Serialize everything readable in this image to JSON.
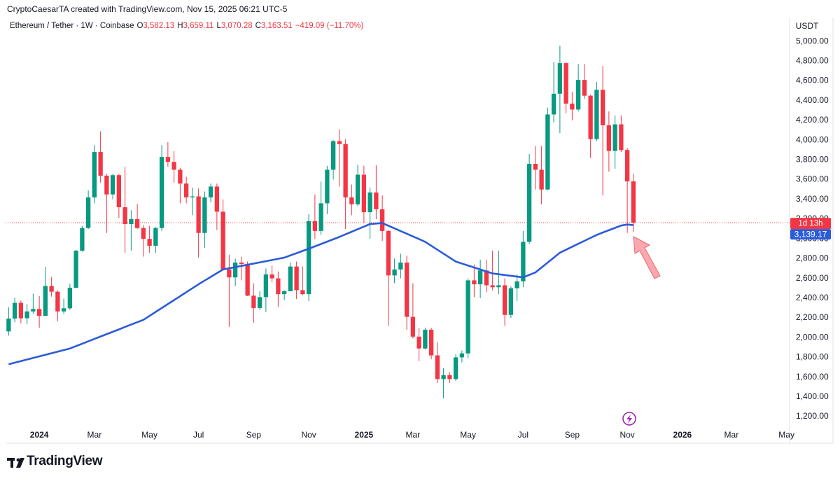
{
  "header": {
    "attribution": "CryptoCaesarTA created with TradingView.com, Nov 15, 2025 06:21 UTC-5",
    "symbol": "Ethereum / Tether · 1W · Coinbase",
    "ohlc": [
      {
        "key": "O",
        "value": "3,582.13"
      },
      {
        "key": "H",
        "value": "3,659.11"
      },
      {
        "key": "L",
        "value": "3,070.28"
      },
      {
        "key": "C",
        "value": "3,163.51"
      }
    ],
    "change": "−419.09 (−11.70%)"
  },
  "chart_data": {
    "type": "candlestick",
    "categories": [
      null,
      null,
      null,
      null,
      null,
      "2024",
      null,
      null,
      null,
      null,
      null,
      null,
      null,
      null,
      "Mar",
      null,
      null,
      null,
      null,
      null,
      null,
      null,
      null,
      "May",
      null,
      null,
      null,
      null,
      null,
      null,
      null,
      "Jul",
      null,
      null,
      null,
      null,
      null,
      null,
      null,
      null,
      "Sep",
      null,
      null,
      null,
      null,
      null,
      null,
      null,
      null,
      "Nov",
      null,
      null,
      null,
      null,
      null,
      null,
      null,
      null,
      "2025",
      null,
      null,
      null,
      null,
      null,
      null,
      null,
      "Mar",
      null,
      null,
      null,
      null,
      null,
      null,
      null,
      null,
      "May",
      null,
      null,
      null,
      null,
      null,
      null,
      null,
      null,
      "Jul",
      null,
      null,
      null,
      null,
      null,
      null,
      null,
      "Sep",
      null,
      null,
      null,
      null,
      null,
      null,
      null,
      null,
      "Nov",
      null,
      null,
      null,
      null,
      null,
      null,
      null,
      null,
      "2026",
      null,
      null,
      null,
      null,
      null,
      null,
      null,
      "Mar",
      null,
      null,
      null,
      null,
      null,
      null,
      null,
      null,
      "May"
    ],
    "open": [
      2063,
      2193,
      2352,
      2196,
      2265,
      2290,
      2220,
      2523,
      2465,
      2265,
      2297,
      2505,
      2880,
      3110,
      3420,
      3880,
      3640,
      3450,
      3645,
      3320,
      3150,
      3200,
      3110,
      3000,
      2930,
      3110,
      3830,
      3780,
      3700,
      3560,
      3420,
      3430,
      3060,
      3420,
      3530,
      3275,
      2690,
      2610,
      2760,
      2745,
      2425,
      2300,
      2410,
      2640,
      2600,
      2440,
      2470,
      2720,
      2480,
      2440,
      3180,
      3080,
      3360,
      3700,
      3990,
      3960,
      3420,
      3350,
      3650,
      3270,
      3470,
      3300,
      3080,
      2630,
      2690,
      2760,
      2210,
      2010,
      1890,
      2080,
      1820,
      1580,
      1620,
      1580,
      1800,
      1840,
      2580,
      2540,
      2680,
      2530,
      2510,
      2530,
      2230,
      2500,
      2570,
      2970,
      3760,
      3700,
      3500,
      4260,
      4470,
      4780,
      4370,
      4310,
      4610,
      4450,
      4010,
      4510,
      4150,
      3890,
      4160,
      3900,
      3582.13,
      null,
      null,
      null,
      null,
      null,
      null,
      null,
      null,
      null,
      null,
      null,
      null,
      null,
      null,
      null,
      null,
      null,
      null,
      null,
      null,
      null,
      null,
      null,
      null,
      null
    ],
    "high": [
      2307,
      2403,
      2374,
      2339,
      2445,
      2420,
      2717,
      2615,
      2478,
      2395,
      2545,
      2890,
      3130,
      3490,
      3950,
      4090,
      3660,
      3660,
      3660,
      3730,
      3290,
      3355,
      3140,
      3130,
      3120,
      3950,
      3980,
      3890,
      3720,
      3630,
      3520,
      3510,
      3480,
      3560,
      3560,
      3400,
      2840,
      2800,
      2820,
      2770,
      2550,
      2470,
      2700,
      2730,
      2670,
      2480,
      2760,
      2770,
      2720,
      3250,
      3450,
      3580,
      3740,
      4000,
      4110,
      4010,
      3550,
      3750,
      3740,
      3520,
      3745,
      3440,
      3090,
      2800,
      2850,
      2830,
      2550,
      2100,
      2100,
      2100,
      1955,
      1690,
      1650,
      1830,
      1870,
      2600,
      2740,
      2790,
      2790,
      2880,
      2880,
      2600,
      2520,
      2640,
      3080,
      3860,
      3940,
      3940,
      4330,
      4790,
      4955,
      4790,
      4490,
      4770,
      4770,
      4460,
      4590,
      4750,
      4290,
      4250,
      4250,
      3920,
      3659.11,
      null,
      null,
      null,
      null,
      null,
      null,
      null,
      null,
      null,
      null,
      null,
      null,
      null,
      null,
      null,
      null,
      null,
      null,
      null,
      null,
      null,
      null,
      null,
      null,
      null
    ],
    "low": [
      2020,
      2155,
      2145,
      2135,
      2240,
      2100,
      2220,
      2415,
      2165,
      2240,
      2280,
      2500,
      2870,
      3100,
      3360,
      3570,
      3060,
      3400,
      3210,
      2860,
      2880,
      3100,
      2820,
      2860,
      2860,
      3080,
      3730,
      3570,
      3360,
      3360,
      3240,
      2810,
      2910,
      3370,
      3090,
      2680,
      2110,
      2520,
      2580,
      2420,
      2150,
      2280,
      2260,
      2560,
      2310,
      2380,
      2470,
      2390,
      2430,
      2370,
      3000,
      3040,
      3250,
      3600,
      3530,
      3100,
      3240,
      3330,
      3160,
      3000,
      3200,
      2980,
      2120,
      2550,
      2600,
      2080,
      1990,
      1760,
      1880,
      1780,
      1540,
      1385,
      1540,
      1560,
      1750,
      1790,
      2410,
      2400,
      2460,
      2480,
      2440,
      2120,
      2200,
      2370,
      2510,
      2950,
      3500,
      3350,
      3490,
      4180,
      4070,
      4270,
      4200,
      4290,
      4420,
      3820,
      3990,
      3440,
      3680,
      3710,
      3880,
      3060,
      3070.28,
      null,
      null,
      null,
      null,
      null,
      null,
      null,
      null,
      null,
      null,
      null,
      null,
      null,
      null,
      null,
      null,
      null,
      null,
      null,
      null,
      null,
      null,
      null,
      null,
      null
    ],
    "close": [
      2193,
      2352,
      2196,
      2265,
      2290,
      2220,
      2523,
      2465,
      2265,
      2297,
      2505,
      2880,
      3110,
      3420,
      3880,
      3640,
      3450,
      3645,
      3320,
      3150,
      3200,
      3110,
      3000,
      2930,
      3110,
      3830,
      3780,
      3700,
      3560,
      3420,
      3430,
      3060,
      3420,
      3530,
      3275,
      2690,
      2610,
      2760,
      2745,
      2425,
      2300,
      2410,
      2640,
      2600,
      2440,
      2470,
      2720,
      2480,
      2440,
      3180,
      3080,
      3360,
      3700,
      3990,
      3960,
      3420,
      3350,
      3650,
      3270,
      3470,
      3300,
      3080,
      2630,
      2690,
      2760,
      2210,
      2010,
      1890,
      2080,
      1820,
      1580,
      1620,
      1580,
      1800,
      1840,
      2580,
      2540,
      2680,
      2530,
      2510,
      2530,
      2230,
      2500,
      2570,
      2970,
      3760,
      3700,
      3500,
      4260,
      4470,
      4780,
      4370,
      4310,
      4610,
      4450,
      4010,
      4510,
      4150,
      3890,
      4160,
      3900,
      3582.13,
      3163.51,
      null,
      null,
      null,
      null,
      null,
      null,
      null,
      null,
      null,
      null,
      null,
      null,
      null,
      null,
      null,
      null,
      null,
      null,
      null,
      null,
      null,
      null,
      null,
      null,
      null
    ],
    "up_color": "#089981",
    "down_color": "#f23645",
    "ma": {
      "color": "#2b5bd7",
      "values": [
        1730,
        1746,
        1762,
        1778,
        1794,
        1810,
        1826,
        1842,
        1858,
        1874,
        1890,
        1914,
        1938,
        1963,
        1987,
        2011,
        2035,
        2059,
        2083,
        2108,
        2132,
        2156,
        2180,
        2220,
        2260,
        2300,
        2340,
        2380,
        2420,
        2460,
        2500,
        2540,
        2578,
        2615,
        2653,
        2690,
        2702,
        2714,
        2726,
        2738,
        2750,
        2762,
        2774,
        2786,
        2798,
        2810,
        2833,
        2855,
        2878,
        2900,
        2924,
        2948,
        2972,
        2996,
        3020,
        3046,
        3072,
        3098,
        3124,
        3150,
        3155,
        3160,
        3133,
        3106,
        3079,
        3052,
        3025,
        2998,
        2970,
        2930,
        2890,
        2850,
        2810,
        2770,
        2750,
        2730,
        2710,
        2690,
        2670,
        2650,
        2642,
        2634,
        2626,
        2618,
        2610,
        2635,
        2660,
        2710,
        2760,
        2810,
        2860,
        2890,
        2920,
        2950,
        2980,
        3010,
        3040,
        3064,
        3088,
        3111,
        3135,
        3145,
        3139.17,
        null,
        null,
        null,
        null,
        null,
        null,
        null,
        null,
        null,
        null,
        null,
        null,
        null,
        null,
        null,
        null,
        null,
        null,
        null,
        null,
        null,
        null,
        null,
        null,
        null
      ],
      "last_label": "3,139.17"
    },
    "countdown": "1d 13h",
    "price_line": true,
    "y_axis_label": "USDT",
    "ylim": [
      1108,
      5100
    ],
    "yticks": [
      {
        "value": 1200,
        "label": "1,200.00"
      },
      {
        "value": 1400,
        "label": "1,400.00"
      },
      {
        "value": 1600,
        "label": "1,600.00"
      },
      {
        "value": 1800,
        "label": "1,800.00"
      },
      {
        "value": 2000,
        "label": "2,000.00"
      },
      {
        "value": 2200,
        "label": "2,200.00"
      },
      {
        "value": 2400,
        "label": "2,400.00"
      },
      {
        "value": 2600,
        "label": "2,600.00"
      },
      {
        "value": 2800,
        "label": "2,800.00"
      },
      {
        "value": 3000,
        "label": "3,000.00"
      },
      {
        "value": 3200,
        "label": "3,200.00"
      },
      {
        "value": 3400,
        "label": "3,400.00"
      },
      {
        "value": 3600,
        "label": "3,600.00"
      },
      {
        "value": 3800,
        "label": "3,800.00"
      },
      {
        "value": 4000,
        "label": "4,000.00"
      },
      {
        "value": 4200,
        "label": "4,200.00"
      },
      {
        "value": 4400,
        "label": "4,400.00"
      },
      {
        "value": 4600,
        "label": "4,600.00"
      },
      {
        "value": 4800,
        "label": "4,800.00"
      },
      {
        "value": 5000,
        "label": "5,000.00"
      }
    ]
  },
  "footer": {
    "logo": "TradingView"
  }
}
